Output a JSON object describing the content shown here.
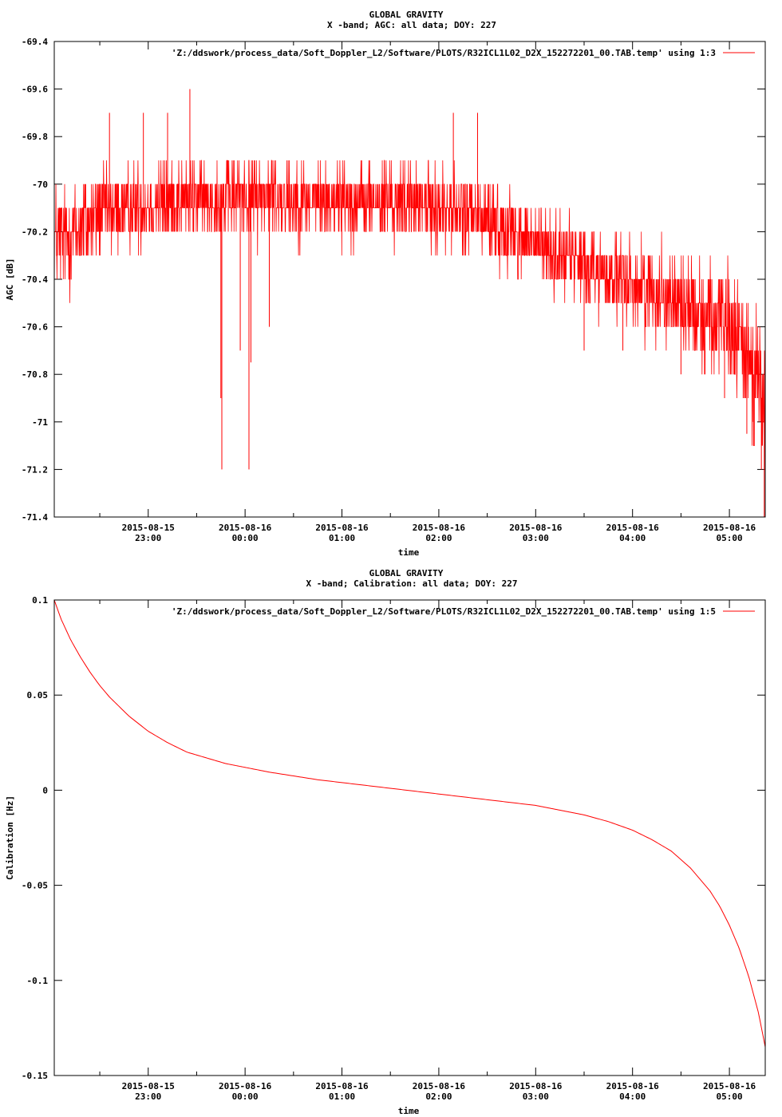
{
  "chart_data": [
    {
      "type": "line",
      "title": "GLOBAL GRAVITY",
      "subtitle": "X -band; AGC: all data; DOY: 227",
      "xlabel": "time",
      "ylabel": "AGC [dB]",
      "legend": "'Z:/ddswork/process_data/Soft_Doppler_L2/Software/PLOTS/R32ICL1L02_D2X_152272201_00.TAB.temp' using 1:3",
      "legend_position": "top-right",
      "series_color": "#ff0000",
      "ylim": [
        -71.4,
        -69.4
      ],
      "yticks": [
        -71.4,
        -71.2,
        -71,
        -70.8,
        -70.6,
        -70.4,
        -70.2,
        -70,
        -69.8,
        -69.6,
        -69.4
      ],
      "ytick_labels": [
        "-71.4",
        "-71.2",
        "-71",
        "-70.8",
        "-70.6",
        "-70.4",
        "-70.2",
        "-70",
        "-69.8",
        "-69.6",
        "-69.4"
      ],
      "xlim": [
        22.03,
        29.37
      ],
      "xticks": [
        23,
        24,
        25,
        26,
        27,
        28,
        29
      ],
      "xtick_labels": [
        [
          "2015-08-15",
          "23:00"
        ],
        [
          "2015-08-16",
          "00:00"
        ],
        [
          "2015-08-16",
          "01:00"
        ],
        [
          "2015-08-16",
          "02:00"
        ],
        [
          "2015-08-16",
          "03:00"
        ],
        [
          "2015-08-16",
          "04:00"
        ],
        [
          "2015-08-16",
          "05:00"
        ]
      ],
      "x_minor_ticks": [
        22.5,
        23.5,
        24.5,
        25.5,
        26.5,
        27.5,
        28.5
      ],
      "series": [
        {
          "x": [
            22.03,
            22.25,
            22.5,
            22.75,
            23.0,
            23.25,
            23.5,
            23.75,
            24.0,
            24.25,
            24.5,
            24.75,
            25.0,
            25.25,
            25.5,
            25.75,
            26.0,
            26.25,
            26.5,
            26.75,
            27.0,
            27.25,
            27.5,
            27.75,
            28.0,
            28.25,
            28.5,
            28.75,
            29.0,
            29.1,
            29.2,
            29.3,
            29.37
          ],
          "values": [
            -70.25,
            -70.2,
            -70.12,
            -70.1,
            -70.08,
            -70.07,
            -70.06,
            -70.06,
            -70.05,
            -70.05,
            -70.06,
            -70.06,
            -70.07,
            -70.07,
            -70.08,
            -70.08,
            -70.1,
            -70.12,
            -70.15,
            -70.2,
            -70.25,
            -70.3,
            -70.34,
            -70.38,
            -70.42,
            -70.45,
            -70.5,
            -70.55,
            -70.62,
            -70.66,
            -70.72,
            -70.82,
            -71.0
          ],
          "spread": [
            0.28,
            0.24,
            0.2,
            0.18,
            0.18,
            0.18,
            0.18,
            0.18,
            0.18,
            0.18,
            0.18,
            0.18,
            0.18,
            0.18,
            0.18,
            0.18,
            0.18,
            0.18,
            0.18,
            0.18,
            0.18,
            0.18,
            0.18,
            0.18,
            0.2,
            0.2,
            0.22,
            0.24,
            0.26,
            0.28,
            0.3,
            0.32,
            0.35
          ],
          "spikes": [
            {
              "x": 22.6,
              "y": -69.7
            },
            {
              "x": 22.95,
              "y": -69.7
            },
            {
              "x": 23.2,
              "y": -69.7
            },
            {
              "x": 23.43,
              "y": -69.6
            },
            {
              "x": 23.75,
              "y": -70.9
            },
            {
              "x": 23.76,
              "y": -71.2
            },
            {
              "x": 23.95,
              "y": -70.7
            },
            {
              "x": 24.04,
              "y": -71.2
            },
            {
              "x": 24.06,
              "y": -70.75
            },
            {
              "x": 24.25,
              "y": -70.6
            },
            {
              "x": 26.15,
              "y": -69.7
            },
            {
              "x": 26.4,
              "y": -69.7
            },
            {
              "x": 27.5,
              "y": -70.7
            },
            {
              "x": 27.9,
              "y": -70.7
            },
            {
              "x": 28.5,
              "y": -70.8
            },
            {
              "x": 28.95,
              "y": -70.9
            },
            {
              "x": 29.18,
              "y": -71.05
            },
            {
              "x": 29.25,
              "y": -71.1
            },
            {
              "x": 29.33,
              "y": -71.2
            },
            {
              "x": 29.36,
              "y": -71.4
            }
          ]
        }
      ]
    },
    {
      "type": "line",
      "title": "GLOBAL GRAVITY",
      "subtitle": "X -band; Calibration: all data; DOY: 227",
      "xlabel": "time",
      "ylabel": "Calibration [Hz]",
      "legend": "'Z:/ddswork/process_data/Soft_Doppler_L2/Software/PLOTS/R32ICL1L02_D2X_152272201_00.TAB.temp' using 1:5",
      "legend_position": "top-right",
      "series_color": "#ff0000",
      "ylim": [
        -0.15,
        0.1
      ],
      "yticks": [
        -0.15,
        -0.1,
        -0.05,
        0,
        0.05,
        0.1
      ],
      "ytick_labels": [
        "-0.15",
        "-0.1",
        "-0.05",
        "0",
        "0.05",
        "0.1"
      ],
      "xlim": [
        22.03,
        29.37
      ],
      "xticks": [
        23,
        24,
        25,
        26,
        27,
        28,
        29
      ],
      "xtick_labels": [
        [
          "2015-08-15",
          "23:00"
        ],
        [
          "2015-08-16",
          "00:00"
        ],
        [
          "2015-08-16",
          "01:00"
        ],
        [
          "2015-08-16",
          "02:00"
        ],
        [
          "2015-08-16",
          "03:00"
        ],
        [
          "2015-08-16",
          "04:00"
        ],
        [
          "2015-08-16",
          "05:00"
        ]
      ],
      "x_minor_ticks": [
        22.5,
        23.5,
        24.5,
        25.5,
        26.5,
        27.5,
        28.5
      ],
      "series": [
        {
          "x": [
            22.03,
            22.1,
            22.2,
            22.3,
            22.4,
            22.5,
            22.6,
            22.7,
            22.8,
            22.9,
            23.0,
            23.2,
            23.4,
            23.6,
            23.8,
            24.0,
            24.25,
            24.5,
            24.75,
            25.0,
            25.25,
            25.5,
            25.75,
            26.0,
            26.25,
            26.5,
            26.75,
            27.0,
            27.25,
            27.5,
            27.75,
            28.0,
            28.2,
            28.4,
            28.6,
            28.8,
            28.9,
            29.0,
            29.1,
            29.2,
            29.3,
            29.37
          ],
          "values": [
            0.1,
            0.09,
            0.079,
            0.07,
            0.062,
            0.055,
            0.049,
            0.044,
            0.039,
            0.035,
            0.031,
            0.025,
            0.02,
            0.017,
            0.014,
            0.012,
            0.0095,
            0.0075,
            0.0055,
            0.004,
            0.0025,
            0.001,
            -0.0005,
            -0.002,
            -0.0035,
            -0.005,
            -0.0065,
            -0.008,
            -0.0105,
            -0.013,
            -0.0165,
            -0.021,
            -0.026,
            -0.032,
            -0.041,
            -0.053,
            -0.061,
            -0.071,
            -0.083,
            -0.098,
            -0.117,
            -0.135
          ]
        }
      ]
    }
  ]
}
